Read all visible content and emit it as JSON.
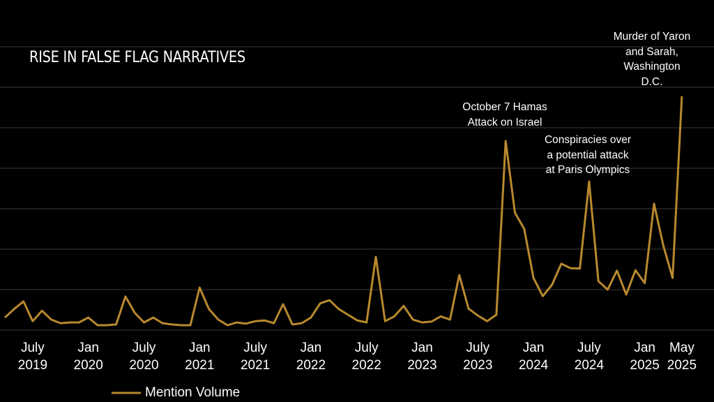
{
  "chart_data": {
    "type": "line",
    "title": "RISE IN FALSE FLAG NARRATIVES",
    "categories": [
      null,
      null,
      null,
      "July\n2019",
      null,
      null,
      null,
      null,
      null,
      "Jan\n2020",
      null,
      null,
      null,
      null,
      null,
      "July\n2020",
      null,
      null,
      null,
      null,
      null,
      "Jan\n2021",
      null,
      null,
      null,
      null,
      null,
      "July\n2021",
      null,
      null,
      null,
      null,
      null,
      "Jan\n2022",
      null,
      null,
      null,
      null,
      null,
      "July\n2022",
      null,
      null,
      null,
      null,
      null,
      "Jan\n2023",
      null,
      null,
      null,
      null,
      null,
      "July\n2023",
      null,
      null,
      null,
      null,
      null,
      "Jan\n2024",
      null,
      null,
      null,
      null,
      null,
      "July\n2024",
      null,
      null,
      null,
      null,
      null,
      "Jan\n2025",
      null,
      null,
      null,
      "May\n2025"
    ],
    "series": [
      {
        "name": "Mention Volume",
        "color": "#b8892e",
        "values": [
          0.31,
          0.52,
          0.71,
          0.22,
          0.48,
          0.26,
          0.17,
          0.19,
          0.19,
          0.31,
          0.12,
          0.12,
          0.14,
          0.83,
          0.43,
          0.19,
          0.31,
          0.17,
          0.14,
          0.12,
          0.12,
          1.05,
          0.52,
          0.26,
          0.12,
          0.19,
          0.16,
          0.22,
          0.24,
          0.17,
          0.64,
          0.14,
          0.17,
          0.31,
          0.66,
          0.74,
          0.52,
          0.38,
          0.24,
          0.19,
          1.81,
          0.22,
          0.34,
          0.6,
          0.26,
          0.19,
          0.21,
          0.34,
          0.26,
          1.36,
          0.53,
          0.36,
          0.22,
          0.38,
          4.67,
          2.9,
          2.5,
          1.29,
          0.84,
          1.12,
          1.64,
          1.53,
          1.52,
          3.67,
          1.21,
          1.0,
          1.47,
          0.88,
          1.48,
          1.16,
          3.12,
          2.09,
          1.29,
          5.78
        ]
      }
    ],
    "ylim": [
      0,
      8
    ],
    "yticks": [
      0,
      1,
      2,
      3,
      4,
      5,
      6,
      7
    ],
    "grid": true,
    "legend": "bottom",
    "annotations": [
      {
        "text": "Murder of Yaron\nand Sarah,\nWashington\nD.C."
      },
      {
        "text": "October 7 Hamas\nAttack on Israel"
      },
      {
        "text": "Conspiracies over\na potential attack\nat Paris Olympics"
      }
    ]
  }
}
